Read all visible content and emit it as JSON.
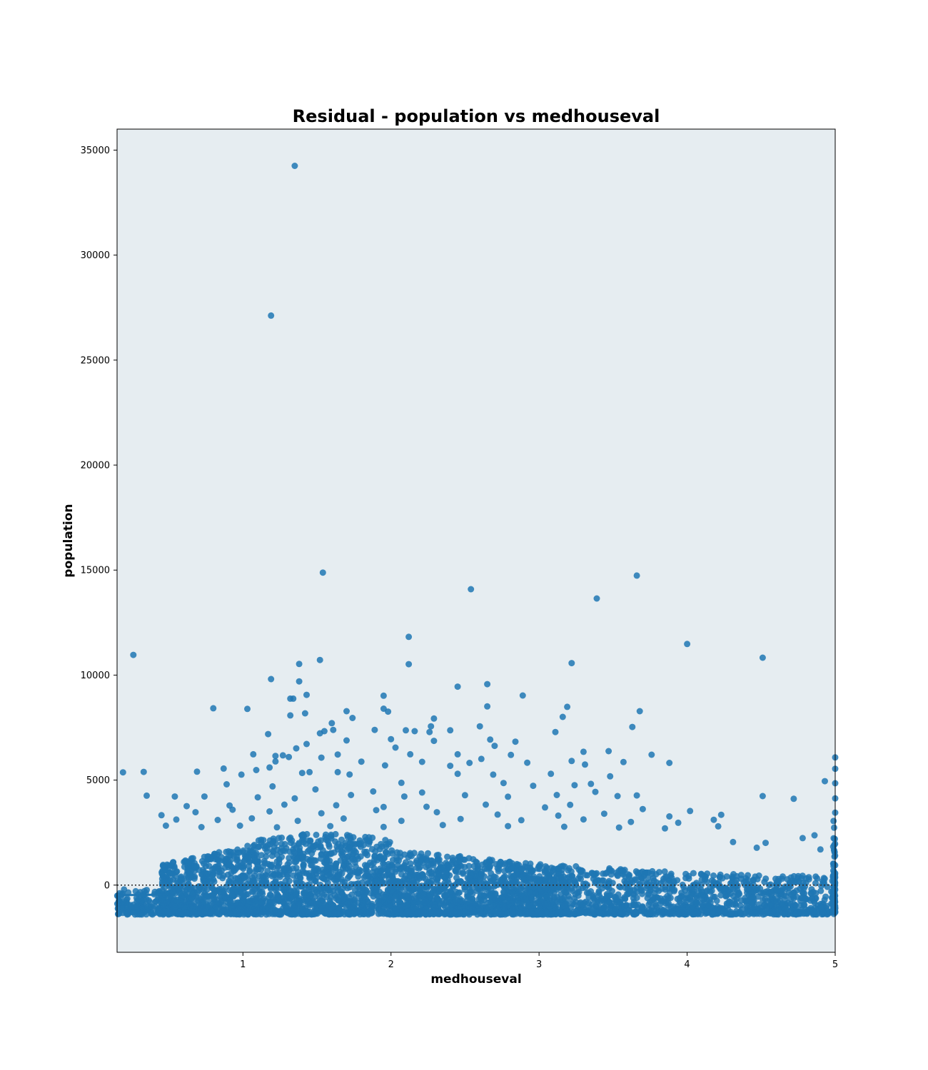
{
  "chart_data": {
    "type": "scatter",
    "title": "Residual - population vs medhouseval",
    "xlabel": "medhouseval",
    "ylabel": "population",
    "xlim": [
      0.15,
      5.0
    ],
    "ylim": [
      -3200,
      36000
    ],
    "xticks": [
      1,
      2,
      3,
      4,
      5
    ],
    "yticks": [
      0,
      5000,
      10000,
      15000,
      20000,
      25000,
      30000,
      35000
    ],
    "grid": false,
    "background": "#e6edf1",
    "point_color": "#1f77b4",
    "reference_line": {
      "y": 0,
      "style": "dotted",
      "color": "#333333"
    },
    "fit_line": {
      "x": [
        0.15,
        0.45
      ],
      "y": [
        -480,
        -460
      ]
    },
    "points": [
      [
        1.35,
        34250
      ],
      [
        1.19,
        27120
      ],
      [
        1.54,
        14880
      ],
      [
        2.54,
        14090
      ],
      [
        3.66,
        14740
      ],
      [
        3.39,
        13650
      ],
      [
        0.26,
        10960
      ],
      [
        2.12,
        11820
      ],
      [
        4.0,
        11480
      ],
      [
        4.51,
        10830
      ],
      [
        1.38,
        10530
      ],
      [
        1.52,
        10720
      ],
      [
        2.12,
        10520
      ],
      [
        3.22,
        10570
      ],
      [
        1.19,
        9810
      ],
      [
        1.38,
        9700
      ],
      [
        2.65,
        9570
      ],
      [
        2.45,
        9450
      ],
      [
        1.43,
        9060
      ],
      [
        1.95,
        9020
      ],
      [
        2.89,
        9030
      ],
      [
        1.32,
        8880
      ],
      [
        1.34,
        8880
      ],
      [
        2.65,
        8510
      ],
      [
        3.19,
        8490
      ],
      [
        3.68,
        8280
      ],
      [
        0.8,
        8420
      ],
      [
        1.03,
        8390
      ],
      [
        1.95,
        8400
      ],
      [
        1.98,
        8260
      ],
      [
        1.7,
        8280
      ],
      [
        1.42,
        8180
      ],
      [
        1.32,
        8080
      ],
      [
        1.74,
        7960
      ],
      [
        2.29,
        7930
      ],
      [
        3.16,
        8010
      ],
      [
        1.6,
        7710
      ],
      [
        2.27,
        7560
      ],
      [
        2.6,
        7560
      ],
      [
        3.63,
        7530
      ],
      [
        1.52,
        7230
      ],
      [
        1.55,
        7330
      ],
      [
        1.61,
        7390
      ],
      [
        1.17,
        7190
      ],
      [
        1.89,
        7390
      ],
      [
        2.1,
        7370
      ],
      [
        2.16,
        7330
      ],
      [
        2.26,
        7290
      ],
      [
        2.4,
        7370
      ],
      [
        3.11,
        7290
      ],
      [
        1.7,
        6890
      ],
      [
        2.0,
        6950
      ],
      [
        2.29,
        6870
      ],
      [
        2.67,
        6930
      ],
      [
        2.84,
        6830
      ],
      [
        1.36,
        6510
      ],
      [
        1.43,
        6720
      ],
      [
        2.03,
        6550
      ],
      [
        2.7,
        6630
      ],
      [
        3.3,
        6350
      ],
      [
        3.47,
        6380
      ],
      [
        1.07,
        6230
      ],
      [
        1.22,
        6150
      ],
      [
        1.27,
        6180
      ],
      [
        1.31,
        6100
      ],
      [
        1.53,
        6070
      ],
      [
        1.64,
        6220
      ],
      [
        2.13,
        6230
      ],
      [
        2.45,
        6230
      ],
      [
        2.61,
        6010
      ],
      [
        2.81,
        6200
      ],
      [
        3.76,
        6210
      ],
      [
        1.22,
        5890
      ],
      [
        1.8,
        5880
      ],
      [
        2.21,
        5870
      ],
      [
        2.53,
        5820
      ],
      [
        2.92,
        5830
      ],
      [
        3.22,
        5910
      ],
      [
        3.88,
        5820
      ],
      [
        5.0,
        6080
      ],
      [
        0.87,
        5550
      ],
      [
        1.09,
        5480
      ],
      [
        1.18,
        5600
      ],
      [
        1.45,
        5380
      ],
      [
        1.64,
        5380
      ],
      [
        1.96,
        5700
      ],
      [
        2.4,
        5680
      ],
      [
        3.31,
        5740
      ],
      [
        3.48,
        5180
      ],
      [
        3.57,
        5860
      ],
      [
        0.19,
        5370
      ],
      [
        0.33,
        5390
      ],
      [
        0.69,
        5400
      ],
      [
        0.99,
        5260
      ],
      [
        1.4,
        5340
      ],
      [
        1.72,
        5270
      ],
      [
        2.07,
        4870
      ],
      [
        2.45,
        5300
      ],
      [
        2.69,
        5260
      ],
      [
        3.08,
        5300
      ],
      [
        3.35,
        4820
      ],
      [
        5.0,
        5540
      ],
      [
        4.93,
        4950
      ],
      [
        5.0,
        4850
      ],
      [
        0.89,
        4800
      ],
      [
        1.2,
        4700
      ],
      [
        1.49,
        4560
      ],
      [
        1.88,
        4460
      ],
      [
        2.21,
        4410
      ],
      [
        2.76,
        4860
      ],
      [
        2.96,
        4730
      ],
      [
        3.24,
        4760
      ],
      [
        3.38,
        4440
      ],
      [
        3.53,
        4240
      ],
      [
        3.66,
        4270
      ],
      [
        0.35,
        4260
      ],
      [
        0.54,
        4220
      ],
      [
        0.74,
        4220
      ],
      [
        1.1,
        4180
      ],
      [
        1.35,
        4130
      ],
      [
        1.73,
        4290
      ],
      [
        2.09,
        4220
      ],
      [
        2.5,
        4280
      ],
      [
        2.79,
        4210
      ],
      [
        3.12,
        4290
      ],
      [
        4.51,
        4240
      ],
      [
        4.72,
        4110
      ],
      [
        5.0,
        4130
      ],
      [
        0.62,
        3760
      ],
      [
        0.91,
        3790
      ],
      [
        1.28,
        3830
      ],
      [
        1.63,
        3800
      ],
      [
        1.95,
        3720
      ],
      [
        2.24,
        3730
      ],
      [
        2.64,
        3830
      ],
      [
        3.04,
        3700
      ],
      [
        3.21,
        3820
      ],
      [
        3.7,
        3620
      ],
      [
        0.45,
        3330
      ],
      [
        0.68,
        3470
      ],
      [
        0.93,
        3590
      ],
      [
        1.18,
        3510
      ],
      [
        1.53,
        3420
      ],
      [
        1.9,
        3570
      ],
      [
        2.31,
        3470
      ],
      [
        2.72,
        3360
      ],
      [
        3.13,
        3310
      ],
      [
        3.44,
        3400
      ],
      [
        3.88,
        3270
      ],
      [
        4.02,
        3530
      ],
      [
        4.18,
        3110
      ],
      [
        4.23,
        3350
      ],
      [
        5.0,
        3450
      ],
      [
        0.55,
        3120
      ],
      [
        0.83,
        3100
      ],
      [
        1.06,
        3180
      ],
      [
        1.37,
        3060
      ],
      [
        1.68,
        3170
      ],
      [
        2.07,
        3060
      ],
      [
        2.47,
        3150
      ],
      [
        2.88,
        3090
      ],
      [
        3.3,
        3130
      ],
      [
        3.62,
        3010
      ],
      [
        3.94,
        2970
      ],
      [
        4.21,
        2800
      ],
      [
        0.48,
        2830
      ],
      [
        0.72,
        2760
      ],
      [
        0.98,
        2830
      ],
      [
        1.23,
        2750
      ],
      [
        1.59,
        2810
      ],
      [
        1.95,
        2770
      ],
      [
        2.35,
        2860
      ],
      [
        2.79,
        2810
      ],
      [
        3.17,
        2780
      ],
      [
        3.54,
        2740
      ],
      [
        3.85,
        2700
      ],
      [
        4.78,
        2240
      ],
      [
        4.86,
        2370
      ],
      [
        4.9,
        1700
      ],
      [
        4.47,
        1780
      ],
      [
        4.31,
        2050
      ],
      [
        4.53,
        2010
      ]
    ]
  }
}
